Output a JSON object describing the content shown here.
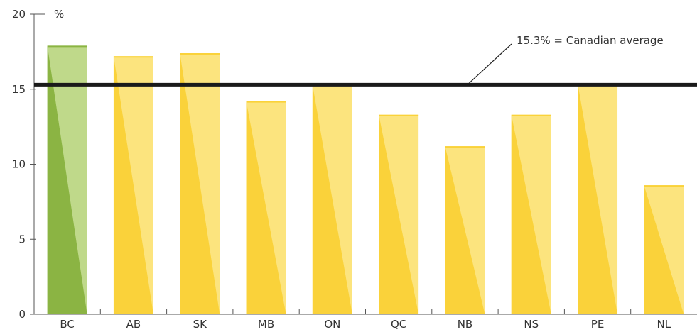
{
  "chart_data": {
    "type": "bar",
    "unit_label": "%",
    "categories": [
      "BC",
      "AB",
      "SK",
      "MB",
      "ON",
      "QC",
      "NB",
      "NS",
      "PE",
      "NL"
    ],
    "values": [
      17.9,
      17.2,
      17.4,
      14.2,
      15.3,
      13.3,
      11.2,
      13.3,
      15.4,
      8.6
    ],
    "ylim": [
      0,
      20
    ],
    "yticks": [
      "0",
      "5",
      "10",
      "15",
      "20"
    ],
    "reference_line": {
      "value": 15.3,
      "label": "15.3% = Canadian average"
    },
    "grid": false,
    "colors": {
      "highlight_dark": "#8bb443",
      "highlight_light": "#bfd98a",
      "bar_dark": "#fad23a",
      "bar_light": "#fce47e",
      "reference": "#1a1a1a",
      "axis": "#555555"
    }
  }
}
